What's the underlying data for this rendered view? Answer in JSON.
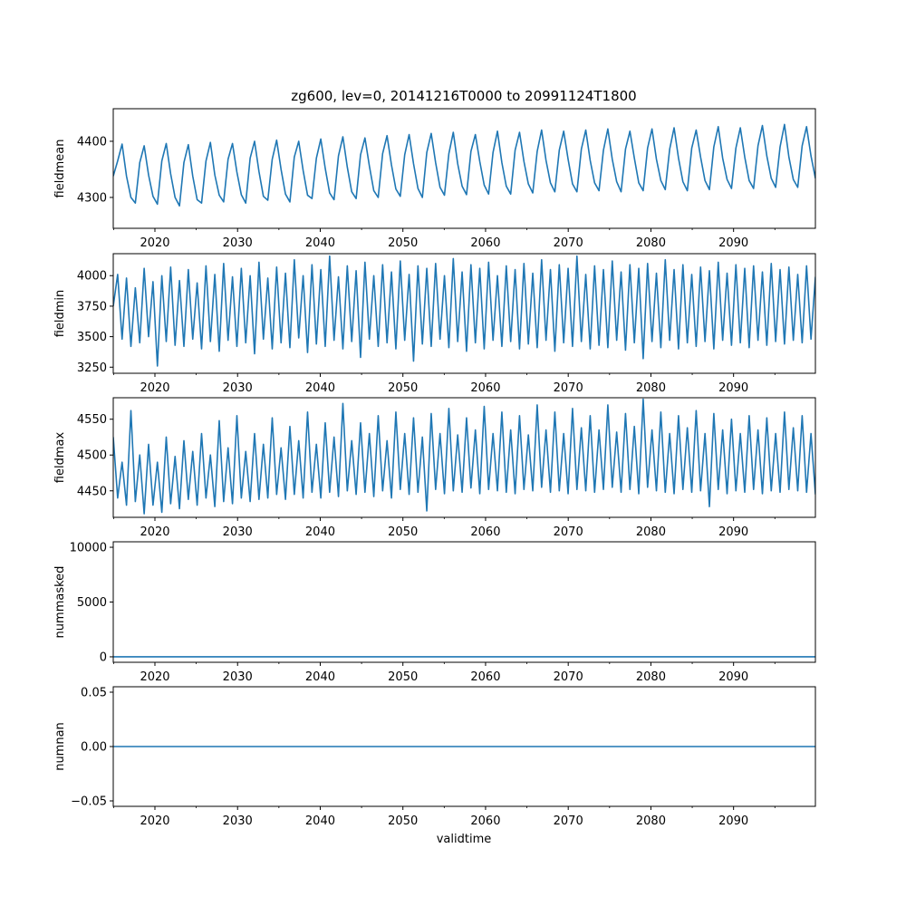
{
  "figure": {
    "title": "zg600, lev=0, 20141216T0000 to 20991124T1800",
    "xlabel": "validtime"
  },
  "colors": {
    "line": "#1f77b4",
    "axes": "#000000",
    "background": "#ffffff"
  },
  "chart_data": [
    {
      "type": "line",
      "ylabel": "fieldmean",
      "xlim": [
        2014.96,
        2099.9
      ],
      "ylim": [
        4245,
        4458
      ],
      "x_ticks": [
        "2020",
        "2030",
        "2040",
        "2050",
        "2060",
        "2070",
        "2080",
        "2090"
      ],
      "y_ticks": [
        "4300",
        "4400"
      ],
      "y_tick_values": [
        4300,
        4400
      ],
      "series": [
        {
          "values": [
            4338,
            4365,
            4395,
            4338,
            4300,
            4290,
            4362,
            4392,
            4340,
            4302,
            4288,
            4365,
            4396,
            4342,
            4300,
            4285,
            4362,
            4394,
            4338,
            4296,
            4290,
            4365,
            4398,
            4340,
            4304,
            4292,
            4368,
            4396,
            4345,
            4305,
            4290,
            4370,
            4400,
            4346,
            4302,
            4295,
            4368,
            4402,
            4350,
            4306,
            4292,
            4372,
            4400,
            4348,
            4304,
            4298,
            4370,
            4404,
            4352,
            4308,
            4296,
            4374,
            4408,
            4354,
            4310,
            4298,
            4376,
            4406,
            4356,
            4312,
            4300,
            4378,
            4410,
            4358,
            4315,
            4302,
            4376,
            4412,
            4360,
            4316,
            4300,
            4380,
            4414,
            4362,
            4318,
            4304,
            4378,
            4416,
            4360,
            4320,
            4305,
            4382,
            4412,
            4364,
            4322,
            4306,
            4380,
            4418,
            4362,
            4320,
            4306,
            4384,
            4416,
            4364,
            4324,
            4308,
            4382,
            4420,
            4366,
            4326,
            4310,
            4384,
            4418,
            4368,
            4324,
            4310,
            4386,
            4420,
            4366,
            4326,
            4312,
            4384,
            4422,
            4368,
            4328,
            4310,
            4386,
            4418,
            4370,
            4326,
            4312,
            4388,
            4422,
            4368,
            4330,
            4314,
            4386,
            4424,
            4370,
            4328,
            4312,
            4388,
            4420,
            4372,
            4330,
            4314,
            4390,
            4426,
            4370,
            4332,
            4316,
            4388,
            4424,
            4372,
            4330,
            4316,
            4392,
            4428,
            4374,
            4334,
            4318,
            4390,
            4430,
            4372,
            4332,
            4318,
            4392,
            4426,
            4374,
            4334
          ]
        }
      ]
    },
    {
      "type": "line",
      "ylabel": "fieldmin",
      "xlim": [
        2014.96,
        2099.9
      ],
      "ylim": [
        3200,
        4180
      ],
      "x_ticks": [
        "2020",
        "2030",
        "2040",
        "2050",
        "2060",
        "2070",
        "2080",
        "2090"
      ],
      "y_ticks": [
        "3250",
        "3500",
        "3750",
        "4000"
      ],
      "y_tick_values": [
        3250,
        3500,
        3750,
        4000
      ],
      "series": [
        {
          "values": [
            3750,
            4010,
            3480,
            3980,
            3420,
            3900,
            3450,
            4060,
            3500,
            3950,
            3260,
            4000,
            3460,
            4070,
            3430,
            3960,
            3420,
            4050,
            3480,
            3940,
            3400,
            4080,
            3460,
            4010,
            3380,
            4100,
            3470,
            3990,
            3420,
            4060,
            3450,
            4000,
            3360,
            4110,
            3480,
            3980,
            3400,
            4070,
            3450,
            4020,
            3410,
            4130,
            3490,
            4000,
            3370,
            4090,
            3440,
            4050,
            3420,
            4160,
            3470,
            3990,
            3400,
            4080,
            3460,
            4040,
            3330,
            4110,
            3480,
            4000,
            3420,
            4090,
            3450,
            4030,
            3400,
            4120,
            3470,
            4010,
            3300,
            4080,
            3440,
            4060,
            3420,
            4100,
            3480,
            4000,
            3410,
            4140,
            3460,
            4030,
            3380,
            4090,
            3450,
            4060,
            3400,
            4110,
            3470,
            4000,
            3420,
            4080,
            3460,
            4050,
            3400,
            4100,
            3440,
            4020,
            3410,
            4130,
            3470,
            4050,
            3380,
            4090,
            3450,
            4060,
            3420,
            4160,
            3460,
            4010,
            3400,
            4080,
            3430,
            4050,
            3410,
            4120,
            3470,
            4030,
            3390,
            4090,
            3450,
            4060,
            3320,
            4100,
            3460,
            4020,
            3410,
            4130,
            3470,
            4050,
            3400,
            4090,
            3450,
            4010,
            3420,
            4070,
            3460,
            4040,
            3400,
            4110,
            3470,
            4020,
            3430,
            4090,
            3450,
            4060,
            3410,
            4080,
            3470,
            4030,
            3430,
            4100,
            3460,
            4050,
            3440,
            4070,
            3470,
            4010,
            3450,
            4080,
            3480,
            3990
          ]
        }
      ]
    },
    {
      "type": "line",
      "ylabel": "fieldmax",
      "xlim": [
        2014.96,
        2099.9
      ],
      "ylim": [
        4413,
        4580
      ],
      "x_ticks": [
        "2020",
        "2030",
        "2040",
        "2050",
        "2060",
        "2070",
        "2080",
        "2090"
      ],
      "y_ticks": [
        "4450",
        "4500",
        "4550"
      ],
      "y_tick_values": [
        4450,
        4500,
        4550
      ],
      "series": [
        {
          "values": [
            4525,
            4440,
            4490,
            4430,
            4562,
            4435,
            4500,
            4418,
            4515,
            4430,
            4490,
            4420,
            4525,
            4432,
            4498,
            4425,
            4520,
            4438,
            4505,
            4430,
            4530,
            4440,
            4500,
            4428,
            4548,
            4435,
            4510,
            4432,
            4555,
            4440,
            4505,
            4435,
            4530,
            4438,
            4515,
            4440,
            4552,
            4445,
            4510,
            4438,
            4540,
            4445,
            4520,
            4440,
            4560,
            4448,
            4515,
            4440,
            4545,
            4448,
            4525,
            4442,
            4572,
            4450,
            4520,
            4445,
            4545,
            4448,
            4530,
            4442,
            4555,
            4450,
            4520,
            4440,
            4560,
            4452,
            4530,
            4445,
            4552,
            4448,
            4525,
            4422,
            4558,
            4452,
            4530,
            4446,
            4565,
            4450,
            4528,
            4448,
            4552,
            4454,
            4535,
            4446,
            4568,
            4452,
            4530,
            4450,
            4560,
            4448,
            4535,
            4446,
            4555,
            4452,
            4528,
            4450,
            4570,
            4455,
            4535,
            4448,
            4560,
            4450,
            4530,
            4446,
            4565,
            4452,
            4538,
            4450,
            4555,
            4448,
            4535,
            4452,
            4570,
            4455,
            4532,
            4448,
            4558,
            4452,
            4540,
            4446,
            4578,
            4455,
            4535,
            4450,
            4560,
            4448,
            4530,
            4446,
            4555,
            4452,
            4538,
            4448,
            4562,
            4450,
            4530,
            4428,
            4558,
            4452,
            4535,
            4446,
            4550,
            4450,
            4530,
            4448,
            4555,
            4452,
            4535,
            4446,
            4552,
            4450,
            4530,
            4448,
            4560,
            4452,
            4538,
            4450,
            4555,
            4448,
            4530,
            4445
          ]
        }
      ]
    },
    {
      "type": "line",
      "ylabel": "nummasked",
      "xlim": [
        2014.96,
        2099.9
      ],
      "ylim": [
        -500,
        10500
      ],
      "x_ticks": [
        "2020",
        "2030",
        "2040",
        "2050",
        "2060",
        "2070",
        "2080",
        "2090"
      ],
      "y_ticks": [
        "0",
        "5000",
        "10000"
      ],
      "y_tick_values": [
        0,
        5000,
        10000
      ],
      "series": [
        {
          "values": [
            0,
            0
          ]
        }
      ]
    },
    {
      "type": "line",
      "ylabel": "numnan",
      "xlim": [
        2014.96,
        2099.9
      ],
      "ylim": [
        -0.055,
        0.055
      ],
      "x_ticks": [
        "2020",
        "2030",
        "2040",
        "2050",
        "2060",
        "2070",
        "2080",
        "2090"
      ],
      "y_ticks": [
        "−0.05",
        "0.00",
        "0.05"
      ],
      "y_tick_values": [
        -0.05,
        0.0,
        0.05
      ],
      "series": [
        {
          "values": [
            0,
            0
          ]
        }
      ]
    }
  ]
}
